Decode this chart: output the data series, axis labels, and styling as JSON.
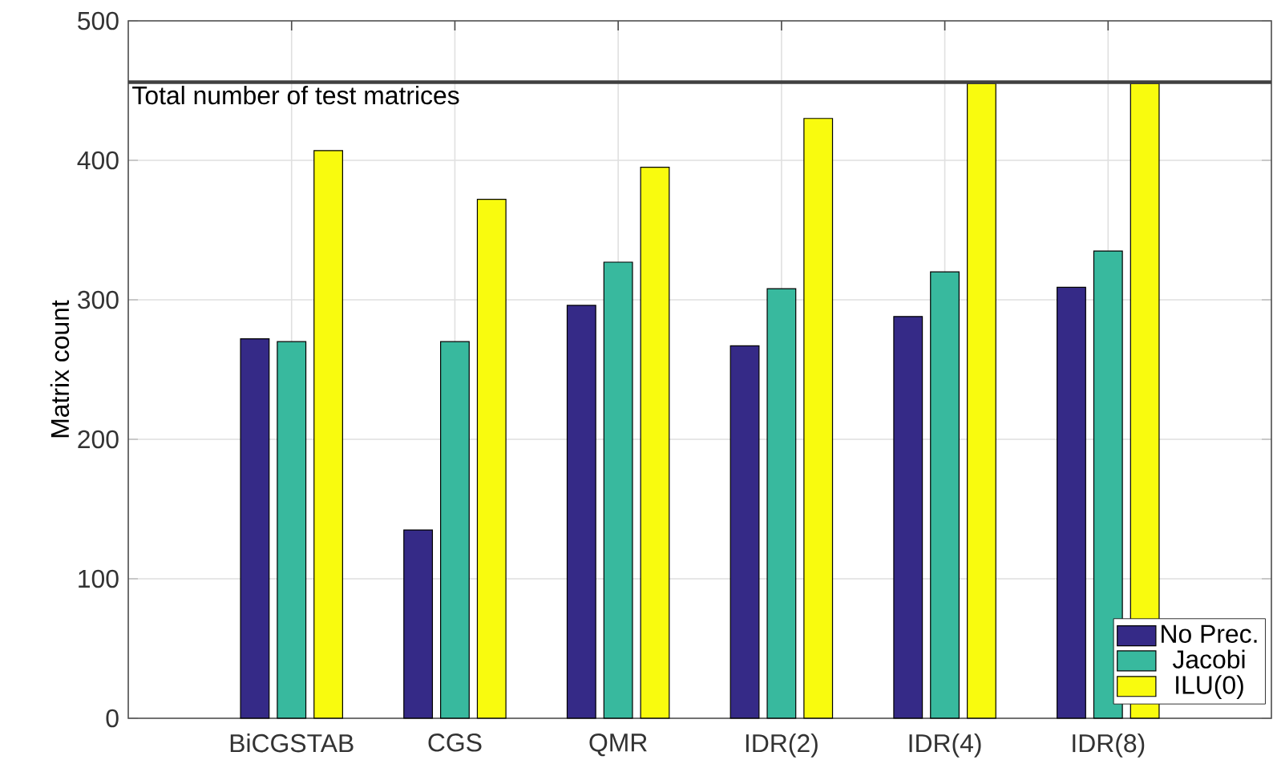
{
  "chart_data": {
    "type": "bar",
    "ylabel": "Matrix count",
    "categories": [
      "BiCGSTAB",
      "CGS",
      "QMR",
      "IDR(2)",
      "IDR(4)",
      "IDR(8)"
    ],
    "series": [
      {
        "name": "No Prec.",
        "color": "#352a87",
        "values": [
          272,
          135,
          296,
          267,
          288,
          309
        ]
      },
      {
        "name": "Jacobi",
        "color": "#38b99e",
        "values": [
          270,
          270,
          327,
          308,
          320,
          335
        ]
      },
      {
        "name": "ILU(0)",
        "color": "#f9fb0e",
        "values": [
          407,
          372,
          395,
          430,
          455,
          455
        ]
      }
    ],
    "ylim": [
      0,
      500
    ],
    "yticks": [
      0,
      100,
      200,
      300,
      400,
      500
    ],
    "ref_lines": [
      {
        "axis": "y",
        "value": 456,
        "label": "Total number of test matrices",
        "color": "#404040"
      }
    ],
    "grid": true,
    "legend": "bottom right"
  }
}
